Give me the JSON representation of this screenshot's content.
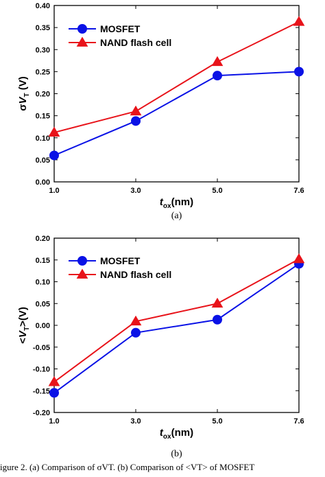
{
  "figure": {
    "caption": "igure 2. (a) Comparison of σVT. (b) Comparison of <VT> of MOSFET"
  },
  "colors": {
    "mosfet": "#0a12e6",
    "nand": "#e8131a"
  },
  "chart_data": [
    {
      "panel_label": "(a)",
      "type": "line",
      "x": [
        "1.0",
        "3.0",
        "5.0",
        "7.6"
      ],
      "xlabel": {
        "main": "t",
        "sub": "ox",
        "unit": "(nm)"
      },
      "ylabel": {
        "prefix": "σ",
        "main": "V",
        "sub": "T",
        "unit": " (V)"
      },
      "ylim": [
        0.0,
        0.4
      ],
      "yticks": [
        "0.00",
        "0.05",
        "0.10",
        "0.15",
        "0.20",
        "0.25",
        "0.30",
        "0.35",
        "0.40"
      ],
      "legend_position": "top-left",
      "series": [
        {
          "name": "MOSFET",
          "marker": "circle",
          "values": [
            0.06,
            0.138,
            0.241,
            0.25
          ]
        },
        {
          "name": "NAND flash cell",
          "marker": "triangle",
          "values": [
            0.112,
            0.16,
            0.272,
            0.363
          ]
        }
      ]
    },
    {
      "panel_label": "(b)",
      "type": "line",
      "x": [
        "1.0",
        "3.0",
        "5.0",
        "7.6"
      ],
      "xlabel": {
        "main": "t",
        "sub": "ox",
        "unit": "(nm)"
      },
      "ylabel": {
        "prefix": "<",
        "main": "V",
        "sub": "T",
        "unit": ">(V)"
      },
      "ylim": [
        -0.2,
        0.2
      ],
      "yticks": [
        "-0.20",
        "-0.15",
        "-0.10",
        "-0.05",
        "0.00",
        "0.05",
        "0.10",
        "0.15",
        "0.20"
      ],
      "legend_position": "top-left",
      "series": [
        {
          "name": "MOSFET",
          "marker": "circle",
          "values": [
            -0.155,
            -0.017,
            0.013,
            0.141
          ]
        },
        {
          "name": "NAND flash cell",
          "marker": "triangle",
          "values": [
            -0.13,
            0.009,
            0.05,
            0.152
          ]
        }
      ]
    }
  ]
}
